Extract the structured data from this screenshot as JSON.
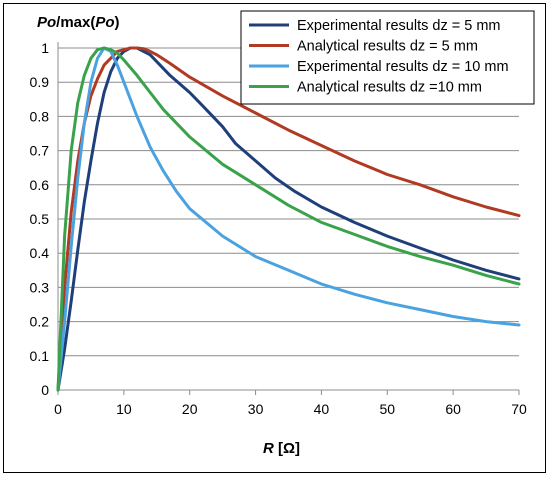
{
  "chart_data": {
    "type": "line",
    "ylabel": {
      "part1": "Po",
      "part2": "/max(",
      "part3": "Po",
      "part4": ")"
    },
    "xlabel": {
      "var": "R",
      "unit": " [Ω]"
    },
    "xlim": [
      0,
      70
    ],
    "ylim": [
      0,
      1
    ],
    "x_ticks": [
      "0",
      "10",
      "20",
      "30",
      "40",
      "50",
      "60",
      "70"
    ],
    "y_ticks": [
      "0",
      "0.1",
      "0.2",
      "0.3",
      "0.4",
      "0.5",
      "0.6",
      "0.7",
      "0.8",
      "0.9",
      "1"
    ],
    "grid": "horizontal",
    "legend_position": "top-right",
    "series": [
      {
        "name": "Experimental results dz = 5 mm",
        "color": "#1f3f7a",
        "x": [
          0,
          1,
          2,
          3,
          4,
          5,
          6,
          7,
          8,
          9,
          10,
          11,
          12,
          13,
          14,
          15,
          17,
          20,
          22,
          25,
          27,
          30,
          33,
          36,
          40,
          45,
          50,
          55,
          60,
          65,
          70
        ],
        "y": [
          0,
          0.12,
          0.26,
          0.41,
          0.55,
          0.67,
          0.78,
          0.87,
          0.93,
          0.97,
          0.99,
          1.0,
          1.0,
          0.99,
          0.98,
          0.96,
          0.92,
          0.87,
          0.83,
          0.77,
          0.72,
          0.67,
          0.62,
          0.58,
          0.535,
          0.49,
          0.45,
          0.415,
          0.38,
          0.35,
          0.325
        ]
      },
      {
        "name": "Analytical results dz = 5 mm",
        "color": "#b03a22",
        "x": [
          0,
          1,
          2,
          3,
          4,
          5,
          6,
          7,
          8,
          9,
          10,
          11,
          12,
          13,
          14,
          15,
          17,
          20,
          25,
          30,
          35,
          40,
          45,
          50,
          55,
          60,
          65,
          70
        ],
        "y": [
          0,
          0.3,
          0.52,
          0.67,
          0.78,
          0.86,
          0.91,
          0.95,
          0.97,
          0.99,
          0.995,
          1.0,
          1.0,
          0.998,
          0.99,
          0.98,
          0.955,
          0.915,
          0.86,
          0.81,
          0.76,
          0.715,
          0.67,
          0.63,
          0.6,
          0.565,
          0.535,
          0.51
        ]
      },
      {
        "name": "Experimental results dz = 10 mm",
        "color": "#4aa3e0",
        "x": [
          0,
          1,
          2,
          3,
          4,
          5,
          6,
          7,
          8,
          9,
          10,
          12,
          14,
          16,
          18,
          20,
          25,
          30,
          35,
          40,
          45,
          50,
          55,
          60,
          65,
          70
        ],
        "y": [
          0,
          0.2,
          0.42,
          0.62,
          0.78,
          0.9,
          0.97,
          1.0,
          0.99,
          0.95,
          0.9,
          0.8,
          0.71,
          0.64,
          0.58,
          0.53,
          0.45,
          0.39,
          0.35,
          0.31,
          0.28,
          0.255,
          0.235,
          0.215,
          0.2,
          0.19
        ]
      },
      {
        "name": "Analytical results dz =10 mm",
        "color": "#3aa24a",
        "x": [
          0,
          1,
          2,
          3,
          4,
          5,
          6,
          7,
          8,
          9,
          10,
          12,
          14,
          16,
          18,
          20,
          25,
          30,
          35,
          40,
          45,
          50,
          55,
          60,
          65,
          70
        ],
        "y": [
          0,
          0.45,
          0.7,
          0.84,
          0.92,
          0.97,
          0.995,
          1.0,
          0.995,
          0.985,
          0.965,
          0.92,
          0.87,
          0.82,
          0.78,
          0.74,
          0.66,
          0.6,
          0.54,
          0.49,
          0.455,
          0.42,
          0.39,
          0.365,
          0.335,
          0.31
        ]
      }
    ]
  }
}
